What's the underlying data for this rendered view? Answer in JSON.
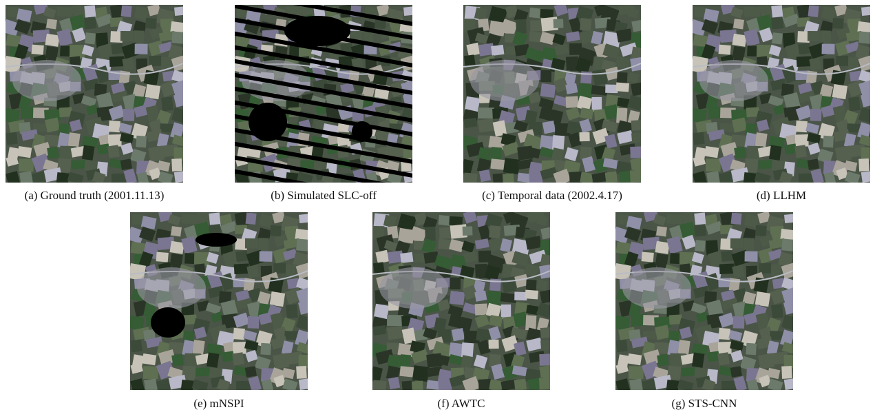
{
  "panels": [
    {
      "caption": "(a) Ground truth (2001.11.13)"
    },
    {
      "caption": "(b) Simulated SLC-off"
    },
    {
      "caption": "(c) Temporal data (2002.4.17)"
    },
    {
      "caption": "(d) LLHM"
    },
    {
      "caption": "(e) mNSPI"
    },
    {
      "caption": "(f) AWTC"
    },
    {
      "caption": "(g) STS-CNN"
    }
  ]
}
